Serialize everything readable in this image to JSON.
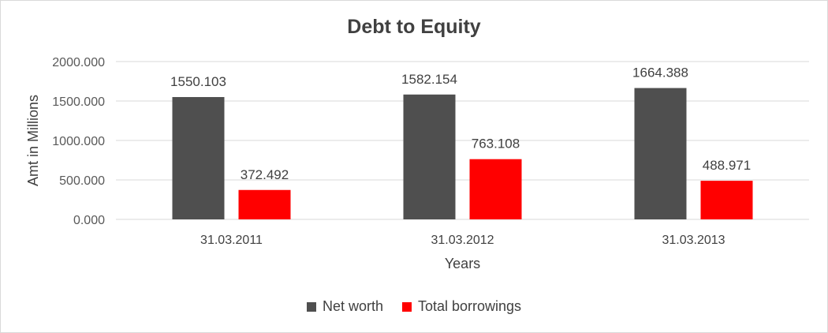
{
  "chart_data": {
    "type": "bar",
    "title": "Debt to Equity",
    "xlabel": "Years",
    "ylabel": "Amt in Millions",
    "categories": [
      "31.03.2011",
      "31.03.2012",
      "31.03.2013"
    ],
    "series": [
      {
        "name": "Net worth",
        "values": [
          1550.103,
          1582.154,
          1664.388
        ],
        "color": "#4f4f4f"
      },
      {
        "name": "Total borrowings",
        "values": [
          372.492,
          763.108,
          488.971
        ],
        "color": "#ff0000"
      }
    ],
    "ylim": [
      0,
      2000
    ],
    "yticks": [
      0,
      500,
      1000,
      1500,
      2000
    ],
    "ytick_labels": [
      "0.000",
      "500.000",
      "1000.000",
      "1500.000",
      "2000.000"
    ],
    "data_labels": [
      [
        "1550.103",
        "1582.154",
        "1664.388"
      ],
      [
        "372.492",
        "763.108",
        "488.971"
      ]
    ],
    "grid": true,
    "legend_position": "bottom"
  }
}
